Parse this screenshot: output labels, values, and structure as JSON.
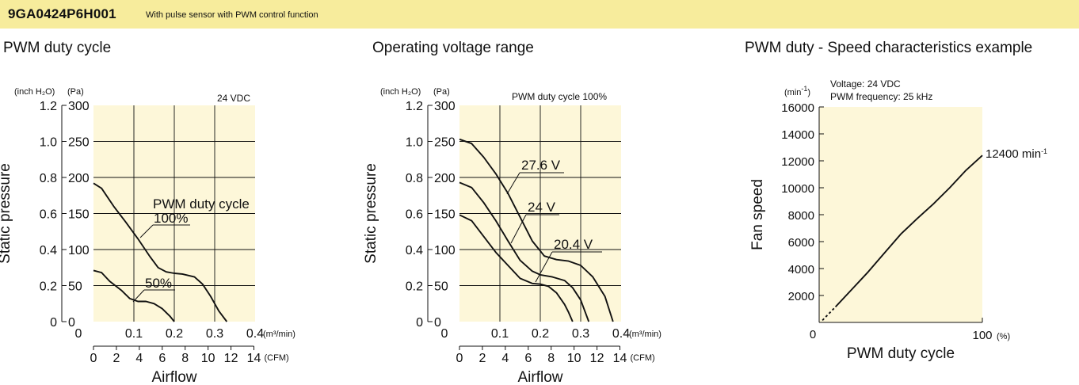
{
  "header": {
    "model": "9GA0424P6H001",
    "description": "With pulse sensor with PWM control function"
  },
  "charts": [
    {
      "title": "PWM duty cycle",
      "note": "24 VDC",
      "y_unit_left": "(inch H₂O)",
      "y_unit_right": "(Pa)",
      "y_ticks_inch": [
        "1.2",
        "1.0",
        "0.8",
        "0.6",
        "0.4",
        "0.2",
        "0"
      ],
      "y_ticks_pa": [
        "300",
        "250",
        "200",
        "150",
        "100",
        "50",
        "0"
      ],
      "x_ticks_m3": [
        "0",
        "0.1",
        "0.2",
        "0.3",
        "0.4"
      ],
      "x_unit_m3": "(m³/min)",
      "x_ticks_cfm": [
        "0",
        "2",
        "4",
        "6",
        "8",
        "10",
        "12",
        "14"
      ],
      "x_unit_cfm": "(CFM)",
      "ylabel": "Static pressure",
      "xlabel": "Airflow",
      "legend_title": "PWM duty cycle",
      "series_labels": [
        "100%",
        "50%"
      ]
    },
    {
      "title": "Operating voltage range",
      "note": "PWM duty cycle 100%",
      "y_unit_left": "(inch H₂O)",
      "y_unit_right": "(Pa)",
      "y_ticks_inch": [
        "1.2",
        "1.0",
        "0.8",
        "0.6",
        "0.4",
        "0.2",
        "0"
      ],
      "y_ticks_pa": [
        "300",
        "250",
        "200",
        "150",
        "100",
        "50",
        "0"
      ],
      "x_ticks_m3": [
        "0",
        "0.1",
        "0.2",
        "0.3",
        "0.4"
      ],
      "x_unit_m3": "(m³/min)",
      "x_ticks_cfm": [
        "0",
        "2",
        "4",
        "6",
        "8",
        "10",
        "12",
        "14"
      ],
      "x_unit_cfm": "(CFM)",
      "ylabel": "Static pressure",
      "xlabel": "Airflow",
      "series_labels": [
        "27.6 V",
        "24 V",
        "20.4 V"
      ]
    },
    {
      "title": "PWM duty - Speed characteristics example",
      "note_line1": "Voltage: 24 VDC",
      "note_line2": "PWM frequency: 25 kHz",
      "y_unit_base": "(min",
      "y_unit_sup": "-1",
      "y_unit_close": ")",
      "y_ticks": [
        "16000",
        "14000",
        "12000",
        "10000",
        "8000",
        "6000",
        "4000",
        "2000",
        "0"
      ],
      "x_ticks": [
        "100"
      ],
      "x_unit": "(%)",
      "ylabel": "Fan speed",
      "xlabel": "PWM duty cycle",
      "end_label_base": "12400 min",
      "end_label_sup": "-1"
    }
  ],
  "chart_data": [
    {
      "type": "line",
      "title": "PWM duty cycle",
      "xlabel": "Airflow (m³/min)",
      "ylabel": "Static pressure (Pa)",
      "xlim": [
        0,
        0.4
      ],
      "ylim": [
        0,
        300
      ],
      "grid": true,
      "series": [
        {
          "name": "100%",
          "x": [
            0,
            0.02,
            0.05,
            0.08,
            0.11,
            0.14,
            0.16,
            0.18,
            0.2,
            0.22,
            0.25,
            0.27,
            0.29,
            0.31,
            0.33
          ],
          "y": [
            192,
            185,
            160,
            138,
            115,
            90,
            75,
            69,
            67,
            66,
            62,
            52,
            35,
            15,
            0
          ]
        },
        {
          "name": "50%",
          "x": [
            0,
            0.02,
            0.04,
            0.07,
            0.09,
            0.11,
            0.13,
            0.15,
            0.17,
            0.19,
            0.2
          ],
          "y": [
            71,
            68,
            56,
            43,
            32,
            28,
            28,
            25,
            18,
            7,
            0
          ]
        }
      ]
    },
    {
      "type": "line",
      "title": "Operating voltage range",
      "xlabel": "Airflow (m³/min)",
      "ylabel": "Static pressure (Pa)",
      "xlim": [
        0,
        0.4
      ],
      "ylim": [
        0,
        300
      ],
      "grid": true,
      "series": [
        {
          "name": "27.6 V",
          "x": [
            0,
            0.03,
            0.06,
            0.09,
            0.12,
            0.15,
            0.18,
            0.21,
            0.24,
            0.27,
            0.3,
            0.33,
            0.36,
            0.38
          ],
          "y": [
            253,
            247,
            228,
            205,
            178,
            145,
            112,
            91,
            86,
            84,
            78,
            62,
            35,
            0
          ]
        },
        {
          "name": "24 V",
          "x": [
            0,
            0.03,
            0.06,
            0.09,
            0.12,
            0.15,
            0.18,
            0.2,
            0.23,
            0.26,
            0.28,
            0.3,
            0.32
          ],
          "y": [
            193,
            186,
            165,
            140,
            112,
            85,
            70,
            65,
            62,
            57,
            47,
            30,
            0
          ]
        },
        {
          "name": "20.4 V",
          "x": [
            0,
            0.03,
            0.06,
            0.09,
            0.12,
            0.15,
            0.18,
            0.2,
            0.22,
            0.24,
            0.26,
            0.27,
            0.28
          ],
          "y": [
            148,
            140,
            118,
            96,
            78,
            60,
            53,
            52,
            49,
            40,
            24,
            13,
            0
          ]
        }
      ]
    },
    {
      "type": "line",
      "title": "PWM duty - Speed characteristics example",
      "xlabel": "PWM duty cycle (%)",
      "ylabel": "Fan speed (min-1)",
      "xlim": [
        0,
        100
      ],
      "ylim": [
        0,
        16000
      ],
      "grid": false,
      "series": [
        {
          "name": "",
          "x": [
            2,
            10,
            20,
            30,
            40,
            50,
            60,
            70,
            80,
            90,
            100
          ],
          "y": [
            150,
            1150,
            2450,
            3750,
            5150,
            6550,
            7700,
            8800,
            10000,
            11300,
            12400
          ]
        }
      ]
    }
  ]
}
